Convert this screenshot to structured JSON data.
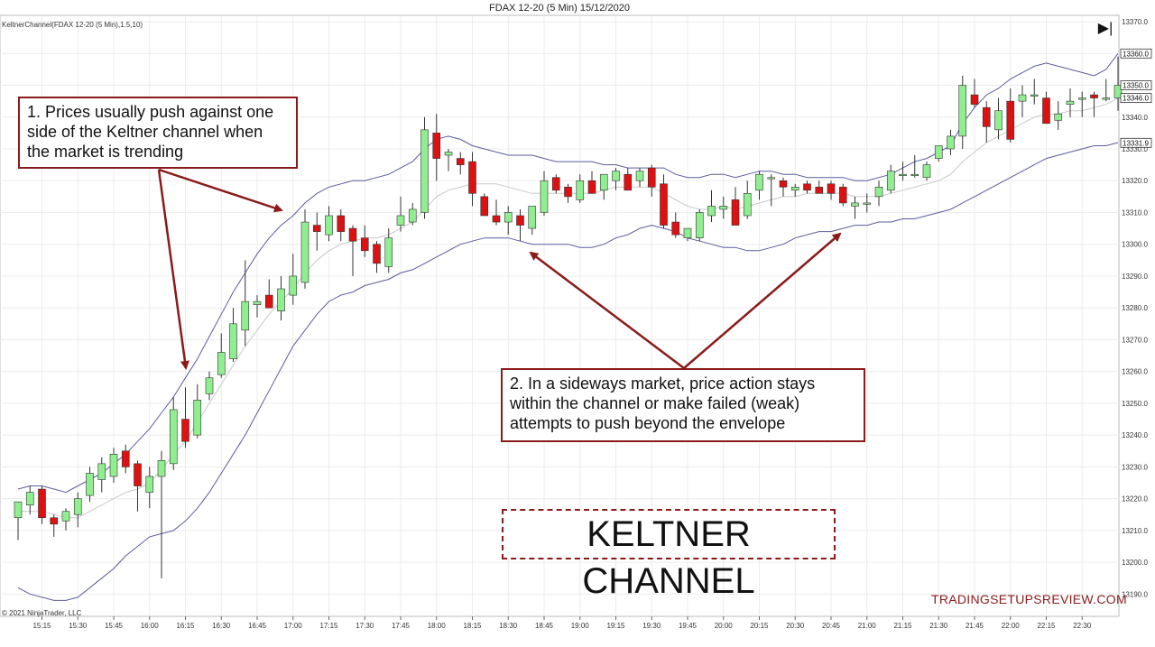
{
  "header": {
    "title": "FDAX 12-20 (5 Min)  15/12/2020",
    "indicator_label": "KeltnerChannel(FDAX 12-20 (5 Min),1.5,10)",
    "copyright": "© 2021 NinjaTrader, LLC",
    "skip_icon": "▶|"
  },
  "annotations": {
    "note1": "1. Prices usually push against one side of the Keltner channel when the market is trending",
    "note2": "2. In a sideways market, price action stays within the channel or make failed (weak) attempts to push beyond the envelope",
    "big_title": "KELTNER CHANNEL",
    "watermark": "TRADINGSETUPSREVIEW.COM"
  },
  "colors": {
    "up": "#90ee90",
    "down": "#dd1111",
    "wick": "#333333",
    "band": "#5b5b9e",
    "mid": "#c8c8c8",
    "annot": "#8b1a1a",
    "grid": "#ececec"
  },
  "chart_data": {
    "type": "candlestick",
    "title": "FDAX 12-20 (5 Min)  15/12/2020",
    "ylim": [
      13183,
      13372
    ],
    "y_ticks": [
      13190,
      13200,
      13210,
      13220,
      13230,
      13240,
      13250,
      13260,
      13270,
      13280,
      13290,
      13300,
      13310,
      13320,
      13330,
      13340,
      13350,
      13360,
      13370
    ],
    "y_tick_labels": [
      "13190.0",
      "13200.0",
      "13210.0",
      "13220.0",
      "13230.0",
      "13240.0",
      "13250.0",
      "13260.0",
      "13270.0",
      "13280.0",
      "13290.0",
      "13300.0",
      "13310.0",
      "13320.0",
      "13330.0",
      "13340.0",
      "13350.0",
      "13360.0",
      "13370.0"
    ],
    "x_labels": [
      "15:15",
      "15:30",
      "15:45",
      "16:00",
      "16:15",
      "16:30",
      "16:45",
      "17:00",
      "17:15",
      "17:30",
      "17:45",
      "18:00",
      "18:15",
      "18:30",
      "18:45",
      "19:00",
      "19:15",
      "19:30",
      "19:45",
      "20:00",
      "20:15",
      "20:30",
      "20:45",
      "21:00",
      "21:15",
      "21:30",
      "21:45",
      "22:00",
      "22:15",
      "22:30"
    ],
    "x_label_bar_index": [
      2,
      5,
      8,
      11,
      14,
      17,
      20,
      23,
      26,
      29,
      32,
      35,
      38,
      41,
      44,
      47,
      50,
      53,
      56,
      59,
      62,
      65,
      68,
      71,
      74,
      77,
      80,
      83,
      86,
      89
    ],
    "price_tags": [
      {
        "label": "13360.0",
        "value": 13360
      },
      {
        "label": "13350.0",
        "value": 13350
      },
      {
        "label": "13346.0",
        "value": 13346
      },
      {
        "label": "13331.9",
        "value": 13331.9
      }
    ],
    "ohlc": [
      [
        13214,
        13219,
        13207,
        13219
      ],
      [
        13218,
        13224,
        13215,
        13222
      ],
      [
        13223,
        13224,
        13212,
        13214
      ],
      [
        13214,
        13215,
        13208,
        13212
      ],
      [
        13213,
        13217,
        13210,
        13216
      ],
      [
        13215,
        13222,
        13211,
        13220
      ],
      [
        13221,
        13230,
        13219,
        13228
      ],
      [
        13226,
        13233,
        13222,
        13231
      ],
      [
        13227,
        13236,
        13225,
        13234
      ],
      [
        13235,
        13237,
        13228,
        13230
      ],
      [
        13231,
        13232,
        13216,
        13224
      ],
      [
        13222,
        13230,
        13217,
        13227
      ],
      [
        13227,
        13235,
        13195,
        13232
      ],
      [
        13231,
        13252,
        13229,
        13248
      ],
      [
        13245,
        13255,
        13236,
        13238
      ],
      [
        13240,
        13256,
        13239,
        13251
      ],
      [
        13253,
        13260,
        13251,
        13258
      ],
      [
        13259,
        13272,
        13258,
        13266
      ],
      [
        13264,
        13280,
        13263,
        13275
      ],
      [
        13273,
        13295,
        13268,
        13282
      ],
      [
        13281,
        13284,
        13277,
        13282
      ],
      [
        13284,
        13289,
        13280,
        13280
      ],
      [
        13279,
        13290,
        13276,
        13286
      ],
      [
        13284,
        13297,
        13281,
        13290
      ],
      [
        13288,
        13311,
        13286,
        13307
      ],
      [
        13306,
        13310,
        13298,
        13304
      ],
      [
        13303,
        13312,
        13301,
        13309
      ],
      [
        13309,
        13311,
        13301,
        13304
      ],
      [
        13305,
        13306,
        13290,
        13301
      ],
      [
        13302,
        13306,
        13296,
        13298
      ],
      [
        13300,
        13301,
        13291,
        13294
      ],
      [
        13293,
        13305,
        13291,
        13302
      ],
      [
        13306,
        13315,
        13304,
        13309
      ],
      [
        13307,
        13313,
        13306,
        13311
      ],
      [
        13310,
        13340,
        13308,
        13336
      ],
      [
        13335,
        13341,
        13320,
        13327
      ],
      [
        13328,
        13330,
        13323,
        13329
      ],
      [
        13327,
        13329,
        13322,
        13325
      ],
      [
        13326,
        13329,
        13312,
        13316
      ],
      [
        13315,
        13316,
        13309,
        13309
      ],
      [
        13309,
        13314,
        13306,
        13307
      ],
      [
        13307,
        13312,
        13303,
        13310
      ],
      [
        13309,
        13311,
        13301,
        13306
      ],
      [
        13305,
        13312,
        13303,
        13312
      ],
      [
        13310,
        13323,
        13309,
        13320
      ],
      [
        13321,
        13322,
        13316,
        13317
      ],
      [
        13318,
        13319,
        13313,
        13315
      ],
      [
        13314,
        13322,
        13313,
        13320
      ],
      [
        13320,
        13323,
        13316,
        13316
      ],
      [
        13317,
        13322,
        13314,
        13322
      ],
      [
        13320,
        13324,
        13317,
        13323
      ],
      [
        13322,
        13324,
        13318,
        13317
      ],
      [
        13320,
        13324,
        13318,
        13323
      ],
      [
        13324,
        13325,
        13315,
        13318
      ],
      [
        13319,
        13322,
        13305,
        13306
      ],
      [
        13307,
        13310,
        13302,
        13303
      ],
      [
        13302,
        13305,
        13301,
        13305
      ],
      [
        13302,
        13311,
        13301,
        13310
      ],
      [
        13309,
        13317,
        13307,
        13312
      ],
      [
        13311,
        13315,
        13308,
        13312
      ],
      [
        13314,
        13318,
        13306,
        13306
      ],
      [
        13309,
        13320,
        13308,
        13316
      ],
      [
        13317,
        13323,
        13314,
        13322
      ],
      [
        13321,
        13322,
        13312,
        13321
      ],
      [
        13320,
        13321,
        13315,
        13318
      ],
      [
        13317,
        13319,
        13315,
        13318
      ],
      [
        13319,
        13320,
        13316,
        13317
      ],
      [
        13318,
        13320,
        13316,
        13316
      ],
      [
        13319,
        13320,
        13314,
        13316
      ],
      [
        13318,
        13319,
        13312,
        13313
      ],
      [
        13312,
        13315,
        13308,
        13313
      ],
      [
        13313,
        13316,
        13310,
        13313
      ],
      [
        13315,
        13320,
        13312,
        13318
      ],
      [
        13317,
        13325,
        13316,
        13323
      ],
      [
        13322,
        13326,
        13320,
        13322
      ],
      [
        13322,
        13328,
        13321,
        13322
      ],
      [
        13321,
        13326,
        13320,
        13325
      ],
      [
        13327,
        13331,
        13326,
        13331
      ],
      [
        13330,
        13336,
        13328,
        13334
      ],
      [
        13334,
        13353,
        13330,
        13350
      ],
      [
        13347,
        13352,
        13343,
        13344
      ],
      [
        13343,
        13345,
        13332,
        13337
      ],
      [
        13336,
        13346,
        13333,
        13342
      ],
      [
        13345,
        13349,
        13332,
        13333
      ],
      [
        13345,
        13350,
        13340,
        13347
      ],
      [
        13347,
        13352,
        13344,
        13347
      ],
      [
        13346,
        13348,
        13338,
        13338
      ],
      [
        13339,
        13345,
        13336,
        13341
      ],
      [
        13344,
        13349,
        13340,
        13345
      ],
      [
        13346,
        13348,
        13340,
        13346
      ],
      [
        13347,
        13348,
        13340,
        13346
      ],
      [
        13346,
        13352,
        13345,
        13346
      ],
      [
        13346,
        13359,
        13342,
        13350
      ]
    ],
    "upper_band": [
      13223,
      13224,
      13224,
      13223,
      13222,
      13224,
      13226,
      13228,
      13231,
      13234,
      13238,
      13242,
      13247,
      13252,
      13258,
      13264,
      13271,
      13278,
      13285,
      13291,
      13297,
      13302,
      13306,
      13309,
      13313,
      13316,
      13318,
      13319,
      13320,
      13320,
      13321,
      13322,
      13324,
      13326,
      13330,
      13333,
      13334,
      13333,
      13331,
      13330,
      13329,
      13328,
      13328,
      13328,
      13327,
      13326,
      13326,
      13326,
      13326,
      13325,
      13325,
      13324,
      13324,
      13324,
      13324,
      13322,
      13321,
      13321,
      13322,
      13322,
      13321,
      13322,
      13323,
      13323,
      13322,
      13322,
      13321,
      13321,
      13321,
      13321,
      13320,
      13320,
      13321,
      13322,
      13324,
      13326,
      13327,
      13329,
      13331,
      13338,
      13343,
      13347,
      13349,
      13352,
      13354,
      13356,
      13357,
      13356,
      13355,
      13354,
      13353,
      13355,
      13360
    ],
    "middle_band": [
      13216,
      13216,
      13216,
      13215,
      13214,
      13214,
      13216,
      13218,
      13220,
      13222,
      13223,
      13225,
      13229,
      13234,
      13238,
      13244,
      13250,
      13256,
      13262,
      13268,
      13273,
      13278,
      13282,
      13286,
      13291,
      13295,
      13298,
      13300,
      13301,
      13302,
      13302,
      13303,
      13305,
      13307,
      13311,
      13315,
      13317,
      13318,
      13319,
      13319,
      13319,
      13318,
      13317,
      13316,
      13316,
      13316,
      13316,
      13316,
      13316,
      13317,
      13318,
      13318,
      13318,
      13318,
      13316,
      13314,
      13312,
      13311,
      13311,
      13312,
      13311,
      13312,
      13313,
      13314,
      13315,
      13315,
      13316,
      13316,
      13316,
      13316,
      13315,
      13315,
      13315,
      13316,
      13317,
      13318,
      13319,
      13320,
      13322,
      13326,
      13329,
      13332,
      13334,
      13336,
      13338,
      13340,
      13341,
      13341,
      13342,
      13342,
      13343,
      13344,
      13346
    ],
    "lower_band": [
      13192,
      13190,
      13189,
      13188,
      13188,
      13189,
      13192,
      13195,
      13198,
      13202,
      13205,
      13208,
      13209,
      13210,
      13213,
      13217,
      13222,
      13228,
      13234,
      13240,
      13247,
      13254,
      13261,
      13268,
      13273,
      13278,
      13282,
      13284,
      13285,
      13287,
      13288,
      13289,
      13291,
      13292,
      13294,
      13296,
      13298,
      13300,
      13301,
      13302,
      13302,
      13302,
      13301,
      13300,
      13300,
      13300,
      13300,
      13299,
      13299,
      13300,
      13302,
      13303,
      13305,
      13306,
      13305,
      13304,
      13302,
      13301,
      13300,
      13299,
      13299,
      13298,
      13298,
      13299,
      13300,
      13302,
      13303,
      13304,
      13304,
      13305,
      13306,
      13306,
      13307,
      13307,
      13308,
      13308,
      13309,
      13310,
      13311,
      13313,
      13315,
      13317,
      13319,
      13321,
      13323,
      13325,
      13327,
      13328,
      13329,
      13330,
      13331,
      13331,
      13332
    ]
  }
}
